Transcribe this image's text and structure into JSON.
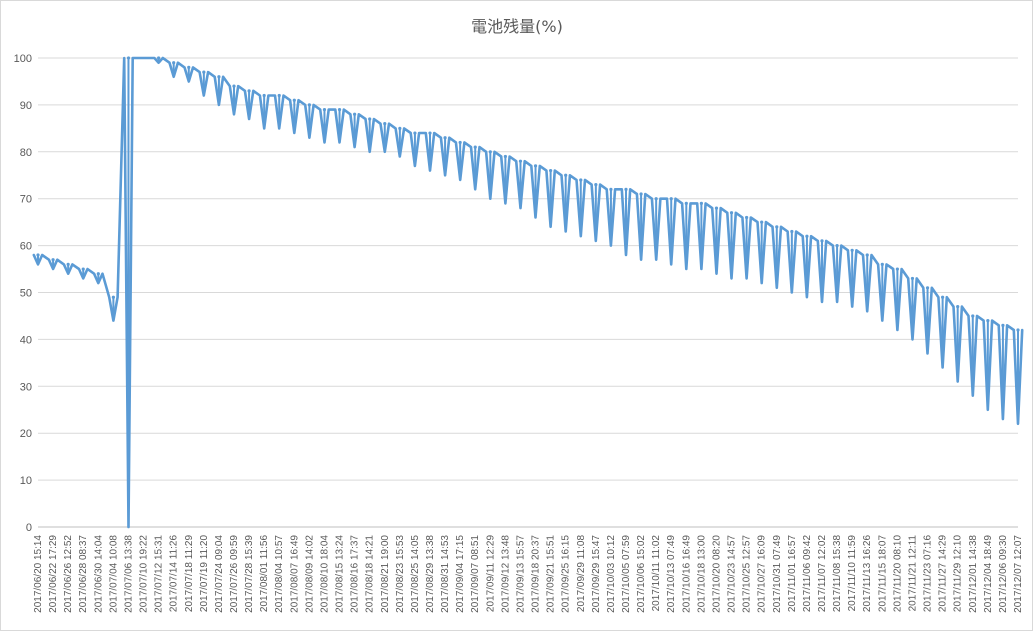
{
  "chart_data": {
    "type": "line",
    "title": "電池残量(%)",
    "xlabel": "",
    "ylabel": "",
    "ylim": [
      0,
      100
    ],
    "yticks": [
      0,
      10,
      20,
      30,
      40,
      50,
      60,
      70,
      80,
      90,
      100
    ],
    "grid": true,
    "legend": "none",
    "series_color": "#5b9bd5",
    "categories": [
      "2017/06/20 15:14",
      "2017/06/22 17:29",
      "2017/06/26 12:52",
      "2017/06/28 08:37",
      "2017/06/30 14:04",
      "2017/07/04 10:08",
      "2017/07/06 13:38",
      "2017/07/10 19:22",
      "2017/07/12 15:31",
      "2017/07/14 11:26",
      "2017/07/18 11:29",
      "2017/07/19 11:20",
      "2017/07/24 09:04",
      "2017/07/26 09:59",
      "2017/07/28 15:39",
      "2017/08/01 11:56",
      "2017/08/04 10:57",
      "2017/08/07 16:49",
      "2017/08/09 14:02",
      "2017/08/10 18:04",
      "2017/08/15 13:24",
      "2017/08/16 17:37",
      "2017/08/18 14:21",
      "2017/08/21 19:00",
      "2017/08/23 15:53",
      "2017/08/25 14:05",
      "2017/08/29 13:38",
      "2017/08/31 14:53",
      "2017/09/04 17:15",
      "2017/09/07 08:51",
      "2017/09/11 12:29",
      "2017/09/12 13:48",
      "2017/09/13 15:57",
      "2017/09/18 20:37",
      "2017/09/21 15:51",
      "2017/09/25 16:15",
      "2017/09/29 11:08",
      "2017/09/29 15:47",
      "2017/10/03 10:12",
      "2017/10/05 07:59",
      "2017/10/06 15:02",
      "2017/10/11 11:02",
      "2017/10/13 07:49",
      "2017/10/16 16:49",
      "2017/10/18 13:00",
      "2017/10/20 08:20",
      "2017/10/23 14:57",
      "2017/10/25 12:57",
      "2017/10/27 16:09",
      "2017/10/31 07:49",
      "2017/11/01 16:57",
      "2017/11/06 09:42",
      "2017/11/07 12:02",
      "2017/11/08 15:38",
      "2017/11/10 11:59",
      "2017/11/13 16:26",
      "2017/11/15 18:07",
      "2017/11/20 08:10",
      "2017/11/21 12:11",
      "2017/11/23 07:16",
      "2017/11/27 14:29",
      "2017/11/29 12:10",
      "2017/12/01 14:38",
      "2017/12/04 18:49",
      "2017/12/06 09:30",
      "2017/12/07 12:07"
    ],
    "series": [
      {
        "values": [
          58,
          57,
          56,
          55,
          54,
          49,
          100,
          100,
          100,
          99,
          98,
          97,
          96,
          94,
          93,
          92,
          92,
          91,
          90,
          89,
          89,
          88,
          87,
          86,
          85,
          84,
          84,
          83,
          82,
          81,
          80,
          79,
          78,
          77,
          76,
          75,
          74,
          73,
          72,
          72,
          71,
          70,
          70,
          69,
          69,
          68,
          67,
          66,
          65,
          64,
          63,
          62,
          61,
          60,
          59,
          58,
          56,
          55,
          53,
          51,
          49,
          47,
          45,
          44,
          43,
          42
        ],
        "lows": [
          56,
          55,
          54,
          53,
          52,
          44,
          0,
          100,
          99,
          96,
          95,
          92,
          90,
          88,
          87,
          85,
          85,
          84,
          83,
          82,
          82,
          81,
          80,
          80,
          79,
          77,
          76,
          75,
          74,
          72,
          70,
          69,
          68,
          66,
          64,
          63,
          62,
          61,
          60,
          58,
          57,
          57,
          56,
          55,
          55,
          54,
          53,
          53,
          52,
          51,
          50,
          49,
          48,
          48,
          47,
          46,
          44,
          42,
          40,
          37,
          34,
          31,
          28,
          25,
          23,
          22
        ]
      }
    ]
  }
}
